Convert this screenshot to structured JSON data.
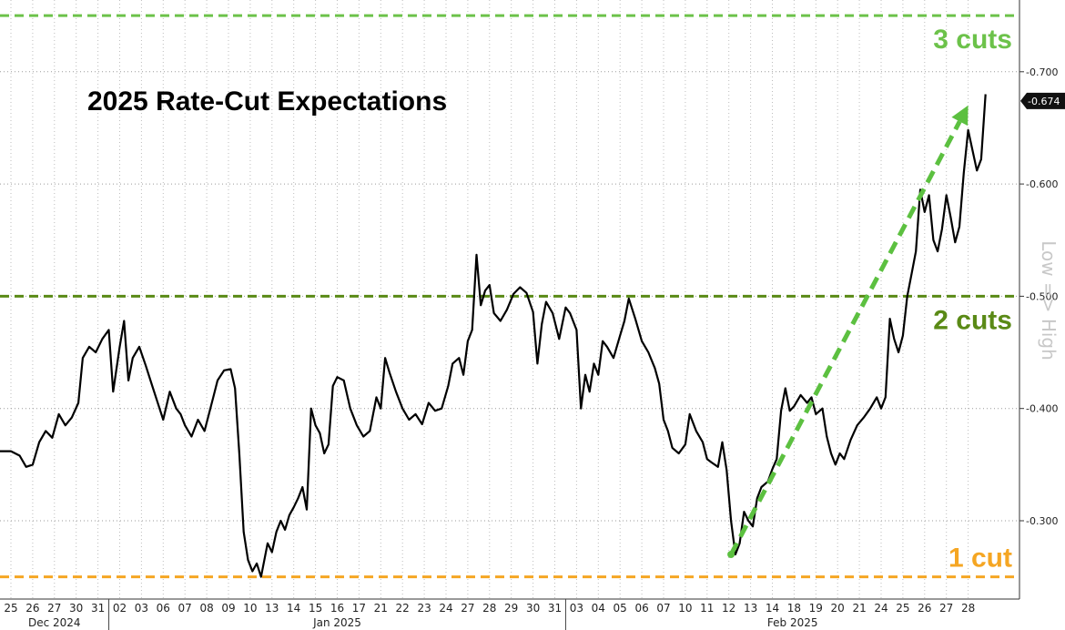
{
  "chart_data": {
    "type": "line",
    "title": "2025 Rate-Cut Expectations",
    "ylabel": "Low => High",
    "ylim": [
      0.25,
      0.75
    ],
    "y_axis_inverted_sign": true,
    "y_ticks": [
      "-0.300",
      "-0.400",
      "-0.500",
      "-0.600",
      "-0.700"
    ],
    "y_tick_values": [
      0.3,
      0.4,
      0.5,
      0.6,
      0.7
    ],
    "last_value_label": "-0.674",
    "last_value": 0.674,
    "grid": true,
    "x_ticks": [
      "25",
      "26",
      "27",
      "30",
      "31",
      "02",
      "03",
      "06",
      "07",
      "08",
      "09",
      "10",
      "13",
      "14",
      "15",
      "16",
      "17",
      "21",
      "22",
      "23",
      "24",
      "27",
      "28",
      "29",
      "30",
      "31",
      "03",
      "04",
      "05",
      "06",
      "07",
      "10",
      "11",
      "12",
      "13",
      "14",
      "18",
      "19",
      "20",
      "21",
      "24",
      "25",
      "26",
      "27",
      "28"
    ],
    "months": [
      {
        "label": "Dec 2024",
        "start": 0,
        "end": 4
      },
      {
        "label": "Jan 2025",
        "start": 5,
        "end": 25
      },
      {
        "label": "Feb 2025",
        "start": 26,
        "end": 44
      }
    ],
    "reference_lines": [
      {
        "label": "3 cuts",
        "value": 0.75,
        "color": "#6cc24a"
      },
      {
        "label": "2 cuts",
        "value": 0.5,
        "color": "#5a8a16"
      },
      {
        "label": "1 cut",
        "value": 0.25,
        "color": "#f5a623"
      }
    ],
    "trend_arrow": {
      "from": {
        "x": 33.1,
        "y": 0.27
      },
      "to": {
        "x": 44.0,
        "y": 0.67
      },
      "color": "#5cc040"
    },
    "series": [
      {
        "color": "#000000",
        "points": [
          [
            -0.8,
            0.362
          ],
          [
            0.0,
            0.362
          ],
          [
            0.4,
            0.358
          ],
          [
            0.7,
            0.348
          ],
          [
            1.0,
            0.35
          ],
          [
            1.3,
            0.37
          ],
          [
            1.6,
            0.38
          ],
          [
            1.9,
            0.374
          ],
          [
            2.2,
            0.395
          ],
          [
            2.5,
            0.385
          ],
          [
            2.8,
            0.392
          ],
          [
            3.1,
            0.405
          ],
          [
            3.3,
            0.445
          ],
          [
            3.6,
            0.455
          ],
          [
            3.9,
            0.45
          ],
          [
            4.2,
            0.462
          ],
          [
            4.5,
            0.47
          ],
          [
            4.7,
            0.415
          ],
          [
            5.0,
            0.455
          ],
          [
            5.2,
            0.478
          ],
          [
            5.4,
            0.425
          ],
          [
            5.6,
            0.445
          ],
          [
            5.9,
            0.455
          ],
          [
            6.2,
            0.438
          ],
          [
            6.5,
            0.42
          ],
          [
            6.7,
            0.408
          ],
          [
            7.0,
            0.39
          ],
          [
            7.3,
            0.415
          ],
          [
            7.6,
            0.4
          ],
          [
            7.8,
            0.395
          ],
          [
            8.0,
            0.385
          ],
          [
            8.3,
            0.375
          ],
          [
            8.6,
            0.39
          ],
          [
            8.9,
            0.38
          ],
          [
            9.1,
            0.395
          ],
          [
            9.3,
            0.41
          ],
          [
            9.5,
            0.425
          ],
          [
            9.8,
            0.434
          ],
          [
            10.1,
            0.435
          ],
          [
            10.3,
            0.418
          ],
          [
            10.5,
            0.36
          ],
          [
            10.7,
            0.29
          ],
          [
            10.9,
            0.265
          ],
          [
            11.1,
            0.255
          ],
          [
            11.3,
            0.262
          ],
          [
            11.5,
            0.25
          ],
          [
            11.8,
            0.28
          ],
          [
            12.0,
            0.272
          ],
          [
            12.2,
            0.29
          ],
          [
            12.4,
            0.3
          ],
          [
            12.6,
            0.292
          ],
          [
            12.8,
            0.305
          ],
          [
            13.0,
            0.312
          ],
          [
            13.2,
            0.32
          ],
          [
            13.4,
            0.33
          ],
          [
            13.6,
            0.31
          ],
          [
            13.8,
            0.4
          ],
          [
            14.0,
            0.385
          ],
          [
            14.2,
            0.378
          ],
          [
            14.4,
            0.36
          ],
          [
            14.6,
            0.368
          ],
          [
            14.8,
            0.42
          ],
          [
            15.0,
            0.428
          ],
          [
            15.3,
            0.425
          ],
          [
            15.6,
            0.4
          ],
          [
            15.9,
            0.385
          ],
          [
            16.2,
            0.375
          ],
          [
            16.5,
            0.38
          ],
          [
            16.8,
            0.41
          ],
          [
            17.0,
            0.4
          ],
          [
            17.2,
            0.445
          ],
          [
            17.4,
            0.432
          ],
          [
            17.7,
            0.415
          ],
          [
            18.0,
            0.4
          ],
          [
            18.3,
            0.39
          ],
          [
            18.6,
            0.395
          ],
          [
            18.9,
            0.386
          ],
          [
            19.2,
            0.405
          ],
          [
            19.5,
            0.398
          ],
          [
            19.8,
            0.4
          ],
          [
            20.1,
            0.42
          ],
          [
            20.3,
            0.44
          ],
          [
            20.6,
            0.445
          ],
          [
            20.8,
            0.43
          ],
          [
            21.0,
            0.46
          ],
          [
            21.2,
            0.47
          ],
          [
            21.4,
            0.537
          ],
          [
            21.6,
            0.492
          ],
          [
            21.8,
            0.505
          ],
          [
            22.0,
            0.51
          ],
          [
            22.2,
            0.485
          ],
          [
            22.5,
            0.478
          ],
          [
            22.8,
            0.488
          ],
          [
            23.1,
            0.502
          ],
          [
            23.4,
            0.508
          ],
          [
            23.7,
            0.503
          ],
          [
            24.0,
            0.486
          ],
          [
            24.2,
            0.44
          ],
          [
            24.4,
            0.475
          ],
          [
            24.6,
            0.495
          ],
          [
            24.9,
            0.485
          ],
          [
            25.2,
            0.462
          ],
          [
            25.5,
            0.49
          ],
          [
            25.7,
            0.485
          ],
          [
            26.0,
            0.47
          ],
          [
            26.2,
            0.4
          ],
          [
            26.4,
            0.43
          ],
          [
            26.6,
            0.415
          ],
          [
            26.8,
            0.44
          ],
          [
            27.0,
            0.43
          ],
          [
            27.2,
            0.46
          ],
          [
            27.4,
            0.455
          ],
          [
            27.7,
            0.445
          ],
          [
            28.0,
            0.465
          ],
          [
            28.2,
            0.478
          ],
          [
            28.4,
            0.498
          ],
          [
            28.7,
            0.48
          ],
          [
            29.0,
            0.46
          ],
          [
            29.3,
            0.45
          ],
          [
            29.6,
            0.436
          ],
          [
            29.8,
            0.422
          ],
          [
            30.0,
            0.39
          ],
          [
            30.2,
            0.38
          ],
          [
            30.4,
            0.365
          ],
          [
            30.7,
            0.36
          ],
          [
            31.0,
            0.368
          ],
          [
            31.2,
            0.395
          ],
          [
            31.5,
            0.38
          ],
          [
            31.8,
            0.37
          ],
          [
            32.0,
            0.355
          ],
          [
            32.2,
            0.352
          ],
          [
            32.5,
            0.348
          ],
          [
            32.7,
            0.37
          ],
          [
            32.9,
            0.345
          ],
          [
            33.1,
            0.3
          ],
          [
            33.3,
            0.27
          ],
          [
            33.5,
            0.28
          ],
          [
            33.7,
            0.308
          ],
          [
            33.9,
            0.3
          ],
          [
            34.1,
            0.295
          ],
          [
            34.3,
            0.32
          ],
          [
            34.5,
            0.33
          ],
          [
            34.8,
            0.335
          ],
          [
            35.0,
            0.346
          ],
          [
            35.2,
            0.355
          ],
          [
            35.4,
            0.398
          ],
          [
            35.6,
            0.418
          ],
          [
            35.8,
            0.398
          ],
          [
            36.0,
            0.402
          ],
          [
            36.3,
            0.412
          ],
          [
            36.6,
            0.405
          ],
          [
            36.8,
            0.41
          ],
          [
            37.0,
            0.395
          ],
          [
            37.3,
            0.4
          ],
          [
            37.5,
            0.375
          ],
          [
            37.7,
            0.36
          ],
          [
            37.9,
            0.35
          ],
          [
            38.1,
            0.36
          ],
          [
            38.3,
            0.355
          ],
          [
            38.6,
            0.372
          ],
          [
            38.9,
            0.385
          ],
          [
            39.2,
            0.392
          ],
          [
            39.5,
            0.4
          ],
          [
            39.8,
            0.41
          ],
          [
            40.0,
            0.4
          ],
          [
            40.2,
            0.41
          ],
          [
            40.4,
            0.48
          ],
          [
            40.6,
            0.462
          ],
          [
            40.8,
            0.45
          ],
          [
            41.0,
            0.465
          ],
          [
            41.2,
            0.5
          ],
          [
            41.4,
            0.52
          ],
          [
            41.6,
            0.54
          ],
          [
            41.8,
            0.595
          ],
          [
            42.0,
            0.575
          ],
          [
            42.2,
            0.59
          ],
          [
            42.4,
            0.55
          ],
          [
            42.6,
            0.54
          ],
          [
            42.8,
            0.56
          ],
          [
            43.0,
            0.59
          ],
          [
            43.2,
            0.57
          ],
          [
            43.4,
            0.548
          ],
          [
            43.6,
            0.562
          ],
          [
            43.8,
            0.61
          ],
          [
            44.0,
            0.648
          ],
          [
            44.2,
            0.63
          ],
          [
            44.4,
            0.612
          ],
          [
            44.6,
            0.622
          ],
          [
            44.8,
            0.68
          ]
        ]
      }
    ]
  }
}
